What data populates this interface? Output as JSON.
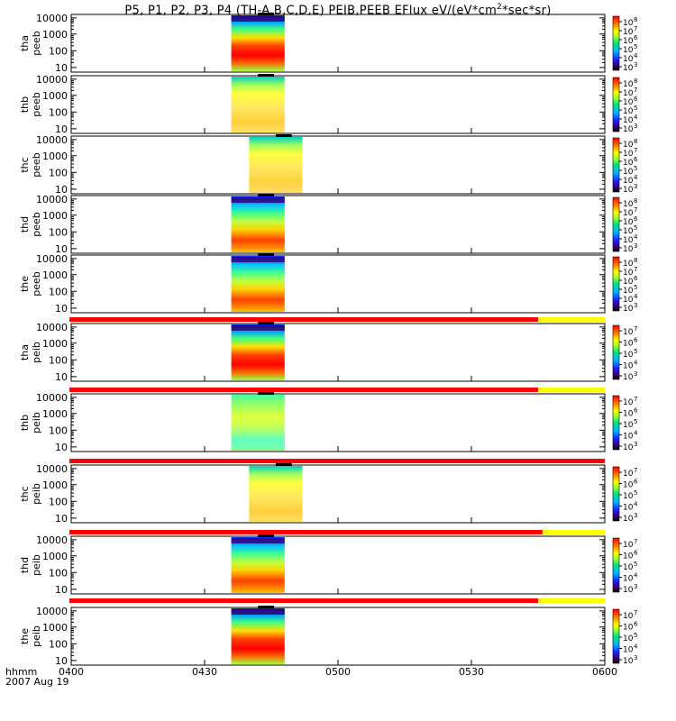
{
  "title_main": "P5, P1, P2, P3, P4 (TH-A,B,C,D,E) PEIB,PEEB EFlux eV/(eV*cm",
  "title_sup": "2",
  "title_end": "*sec*sr)",
  "footer": {
    "time_label": "hhmm",
    "date_label": "2007 Aug 19"
  },
  "colors": {
    "red": "#ff0000",
    "yellow": "#ffff00",
    "black": "#000000"
  },
  "chart_data": {
    "type": "heatmap",
    "xlim": [
      "0400",
      "0600"
    ],
    "xticks": [
      "0400",
      "0430",
      "0500",
      "0530",
      "0600"
    ],
    "y_scale": "log",
    "yticks": [
      "10",
      "100",
      "1000",
      "10000"
    ],
    "colorscale": "rainbow",
    "panels": [
      {
        "name_line1": "tha",
        "name_line2": "peeb",
        "data_start": "0436",
        "data_end": "0448",
        "profile": "hot",
        "cbar_ticks": [
          "10",
          "10",
          "10",
          "10",
          "10",
          "10"
        ],
        "cbar_exps": [
          "8",
          "7",
          "6",
          "5",
          "4",
          "3"
        ],
        "status_bar": null
      },
      {
        "name_line1": "thb",
        "name_line2": "peeb",
        "data_start": "0436",
        "data_end": "0448",
        "profile": "warm",
        "cbar_ticks": [
          "10",
          "10",
          "10",
          "10",
          "10",
          "10"
        ],
        "cbar_exps": [
          "8",
          "7",
          "6",
          "5",
          "4",
          "3"
        ],
        "status_bar": null
      },
      {
        "name_line1": "thc",
        "name_line2": "peeb",
        "data_start": "0440",
        "data_end": "0452",
        "profile": "warm",
        "cbar_ticks": [
          "10",
          "10",
          "10",
          "10",
          "10",
          "10"
        ],
        "cbar_exps": [
          "8",
          "7",
          "6",
          "5",
          "4",
          "3"
        ],
        "status_bar": null
      },
      {
        "name_line1": "thd",
        "name_line2": "peeb",
        "data_start": "0436",
        "data_end": "0448",
        "profile": "mixed",
        "cbar_ticks": [
          "10",
          "10",
          "10",
          "10",
          "10",
          "10"
        ],
        "cbar_exps": [
          "8",
          "7",
          "6",
          "5",
          "4",
          "3"
        ],
        "status_bar": null
      },
      {
        "name_line1": "the",
        "name_line2": "peeb",
        "data_start": "0436",
        "data_end": "0448",
        "profile": "mixed",
        "cbar_ticks": [
          "10",
          "10",
          "10",
          "10",
          "10",
          "10"
        ],
        "cbar_exps": [
          "8",
          "7",
          "6",
          "5",
          "4",
          "3"
        ],
        "status_bar": null
      },
      {
        "name_line1": "tha",
        "name_line2": "peib",
        "data_start": "0436",
        "data_end": "0448",
        "profile": "hot",
        "cbar_ticks": [
          "10",
          "10",
          "10",
          "10",
          "10"
        ],
        "cbar_exps": [
          "7",
          "6",
          "5",
          "4",
          "3"
        ],
        "status_bar": {
          "red_until": "0545"
        }
      },
      {
        "name_line1": "thb",
        "name_line2": "peib",
        "data_start": "0436",
        "data_end": "0448",
        "profile": "cool",
        "cbar_ticks": [
          "10",
          "10",
          "10",
          "10",
          "10"
        ],
        "cbar_exps": [
          "7",
          "6",
          "5",
          "4",
          "3"
        ],
        "status_bar": {
          "red_until": "0545"
        }
      },
      {
        "name_line1": "thc",
        "name_line2": "peib",
        "data_start": "0440",
        "data_end": "0452",
        "profile": "warm",
        "cbar_ticks": [
          "10",
          "10",
          "10",
          "10",
          "10"
        ],
        "cbar_exps": [
          "7",
          "6",
          "5",
          "4",
          "3"
        ],
        "status_bar": {
          "red_until": "0600"
        }
      },
      {
        "name_line1": "thd",
        "name_line2": "peib",
        "data_start": "0436",
        "data_end": "0448",
        "profile": "mixed",
        "cbar_ticks": [
          "10",
          "10",
          "10",
          "10",
          "10"
        ],
        "cbar_exps": [
          "7",
          "6",
          "5",
          "4",
          "3"
        ],
        "status_bar": {
          "red_until": "0546"
        }
      },
      {
        "name_line1": "the",
        "name_line2": "peib",
        "data_start": "0436",
        "data_end": "0448",
        "profile": "hot",
        "cbar_ticks": [
          "10",
          "10",
          "10",
          "10",
          "10"
        ],
        "cbar_exps": [
          "7",
          "6",
          "5",
          "4",
          "3"
        ],
        "status_bar": {
          "red_until": "0545"
        }
      }
    ]
  }
}
